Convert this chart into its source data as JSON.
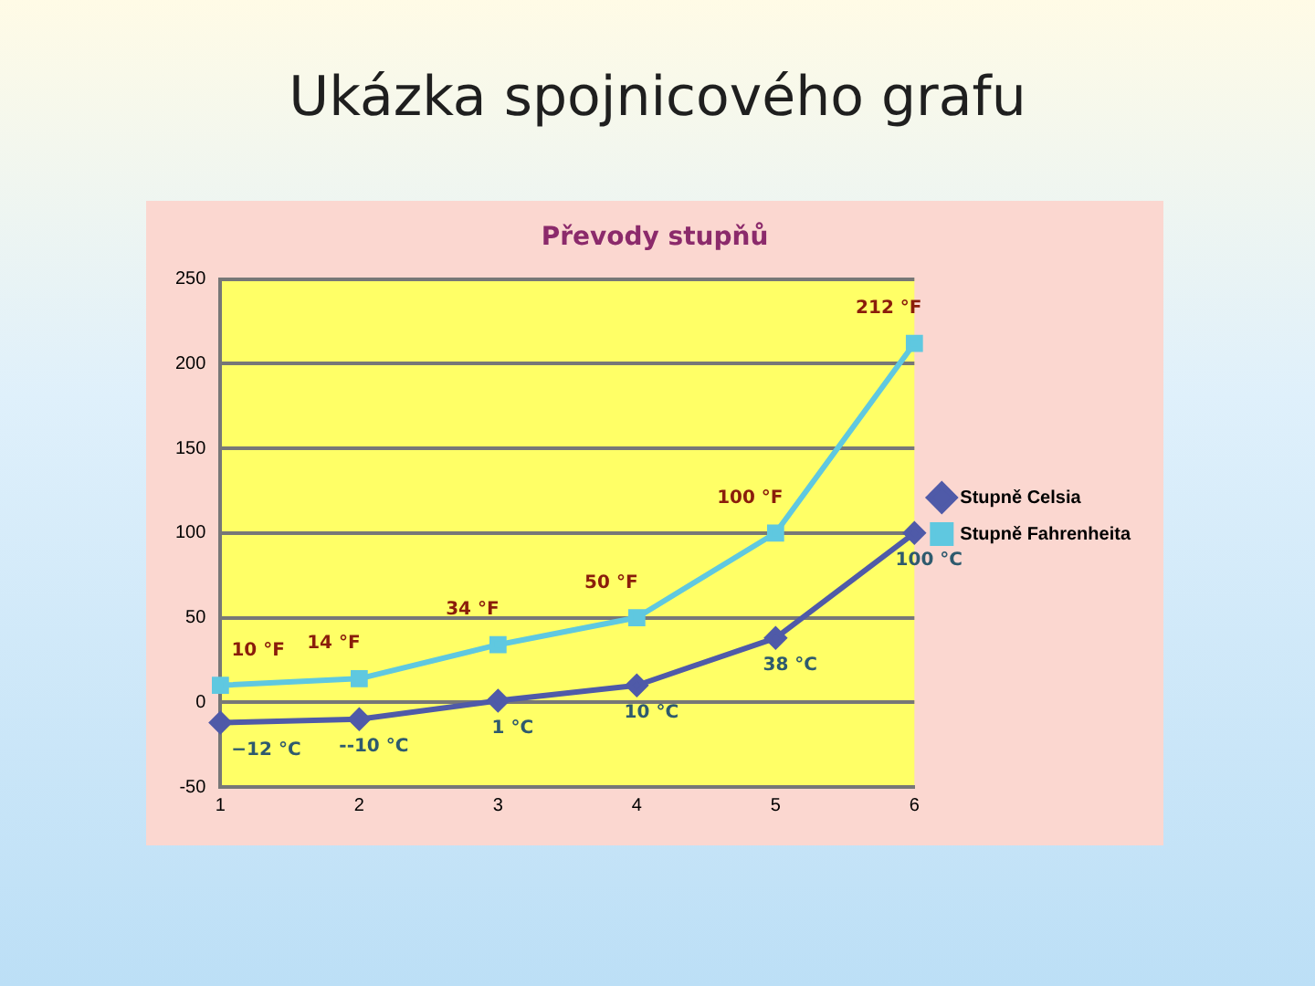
{
  "chart_data": {
    "type": "line",
    "title": "Ukázka spojnicového grafu",
    "subtitle": "Převody stupňů",
    "categories": [
      "1",
      "2",
      "3",
      "4",
      "5",
      "6"
    ],
    "series": [
      {
        "name": "Stupně Celsia",
        "color": "#4f5aa8",
        "marker": "diamond",
        "values": [
          -12,
          -10,
          1,
          10,
          38,
          100
        ],
        "value_labels": [
          "−12 °C",
          "--10 °C",
          "1 °C",
          "10 °C",
          "38 °C",
          "100 °C"
        ]
      },
      {
        "name": "Stupně Fahrenheita",
        "color": "#5fc8e0",
        "marker": "square",
        "values": [
          10,
          14,
          34,
          50,
          100,
          212
        ],
        "value_labels": [
          "10 °F",
          "14 °F",
          "34 °F",
          "50 °F",
          "100 °F",
          "212 °F"
        ]
      }
    ],
    "ylim": [
      -50,
      250
    ],
    "yticks": [
      -50,
      0,
      50,
      100,
      150,
      200,
      250
    ],
    "grid": "y",
    "legend": "right"
  }
}
